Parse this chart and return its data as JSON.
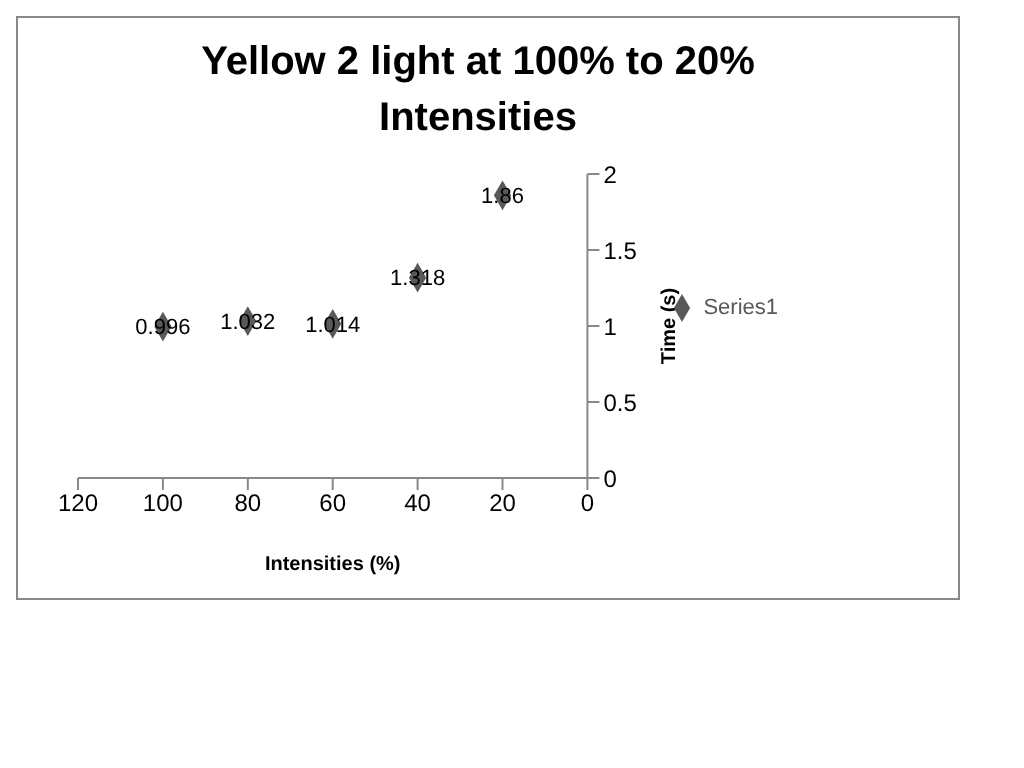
{
  "chart_data": {
    "type": "scatter",
    "title": "Yellow 2 light at 100% to 20% Intensities",
    "xlabel": "Intensities (%)",
    "ylabel": "Time (s)",
    "x": [
      100,
      80,
      60,
      40,
      20
    ],
    "series": [
      {
        "name": "Series1",
        "color": "#595959",
        "values": [
          0.996,
          1.032,
          1.014,
          1.318,
          1.86
        ]
      }
    ],
    "xlim": [
      120,
      0
    ],
    "xticks": [
      120,
      100,
      80,
      60,
      40,
      20,
      0
    ],
    "ylim": [
      0,
      2
    ],
    "yticks": [
      0,
      0.5,
      1,
      1.5,
      2
    ],
    "data_labels": true,
    "marker": "diamond",
    "legend": "right",
    "grid": false
  }
}
